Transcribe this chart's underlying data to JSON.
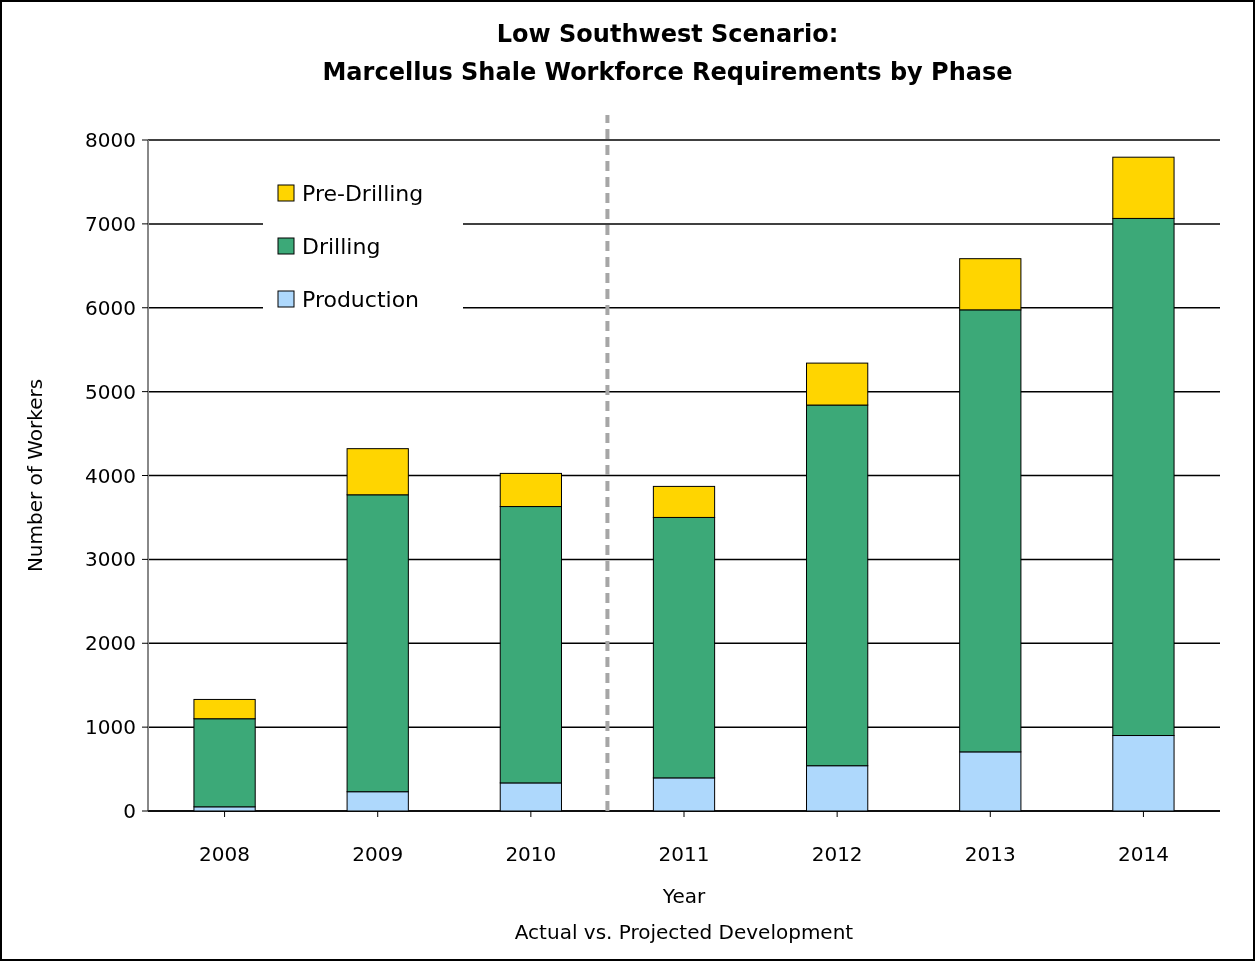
{
  "chart_data": {
    "type": "bar",
    "title": "Low Southwest Scenario:\nMarcellus Shale Workforce Requirements by Phase",
    "xlabel": "Year",
    "ylabel": "Number of Workers",
    "annotations": [
      "Actual vs. Projected Development"
    ],
    "x": [
      2008,
      2009,
      2010,
      2011,
      2012,
      2013,
      2014
    ],
    "xlim": [
      2007.5,
      2014.5
    ],
    "xticks": [
      2008,
      2009,
      2010,
      2011,
      2012,
      2013,
      2014
    ],
    "ylim": [
      0,
      8000
    ],
    "yticks": [
      0,
      1000,
      2000,
      3000,
      4000,
      5000,
      6000,
      7000,
      8000
    ],
    "grid": "y",
    "stacked": true,
    "legend": "top left",
    "ref_lines": [
      {
        "axis": "x",
        "value": 2010.5,
        "color": "#a6a6a6",
        "line_style": "dashed"
      }
    ],
    "series": [
      {
        "name": "Production",
        "color": "#aed8fc",
        "values": [
          50,
          230,
          335,
          395,
          540,
          705,
          900
        ]
      },
      {
        "name": "Drilling",
        "color": "#3ca978",
        "values": [
          1050,
          3540,
          3295,
          3105,
          4300,
          5270,
          6165
        ]
      },
      {
        "name": "Pre-Drilling",
        "color": "#ffd500",
        "values": [
          230,
          550,
          395,
          370,
          500,
          610,
          730
        ]
      }
    ]
  }
}
